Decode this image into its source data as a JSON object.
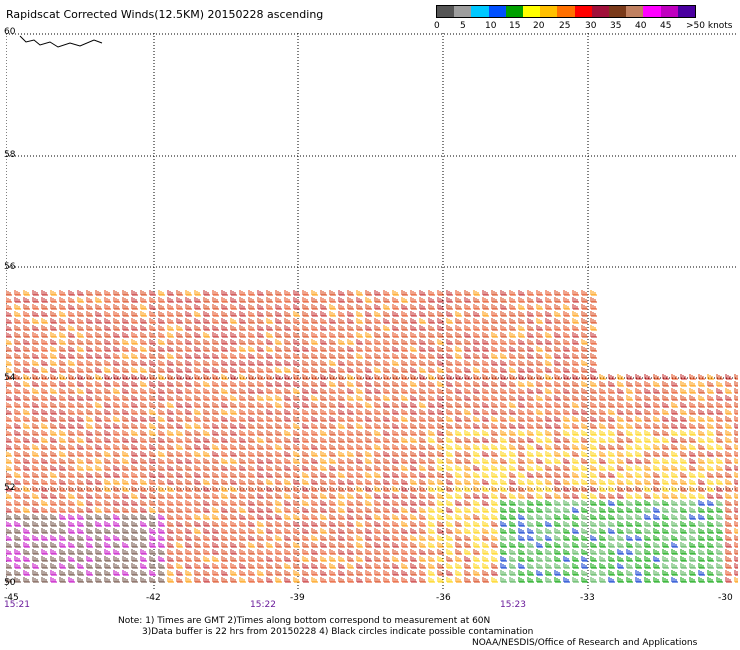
{
  "title": "Rapidscat Corrected Winds(12.5KM) 20150228 ascending",
  "legend": {
    "colors": [
      "#555555",
      "#9e9e9e",
      "#00c8ff",
      "#0050ff",
      "#00a000",
      "#ffff00",
      "#ffc000",
      "#ff7000",
      "#ff0000",
      "#a0103a",
      "#7a3a1a",
      "#c08060",
      "#ff00ff",
      "#c000c0",
      "#4a00a0"
    ],
    "labels": [
      "0",
      "5",
      "10",
      "15",
      "20",
      "25",
      "30",
      "35",
      "40",
      "45",
      ">50 knots"
    ]
  },
  "lat_labels": [
    "60",
    "58",
    "56",
    "54",
    "52",
    "50"
  ],
  "lon_labels": [
    "-45",
    "-42",
    "-39",
    "-36",
    "-33",
    "-30"
  ],
  "times": [
    "15:21",
    "15:22",
    "15:23"
  ],
  "note_lines": [
    "Note: 1) Times are GMT 2)Times along bottom correspond to measurement at 60N",
    "3)Data buffer is 22 hrs from 20150228 4) Black circles indicate possible contamination"
  ],
  "credit": "NOAA/NESDIS/Office of Research and Applications"
}
